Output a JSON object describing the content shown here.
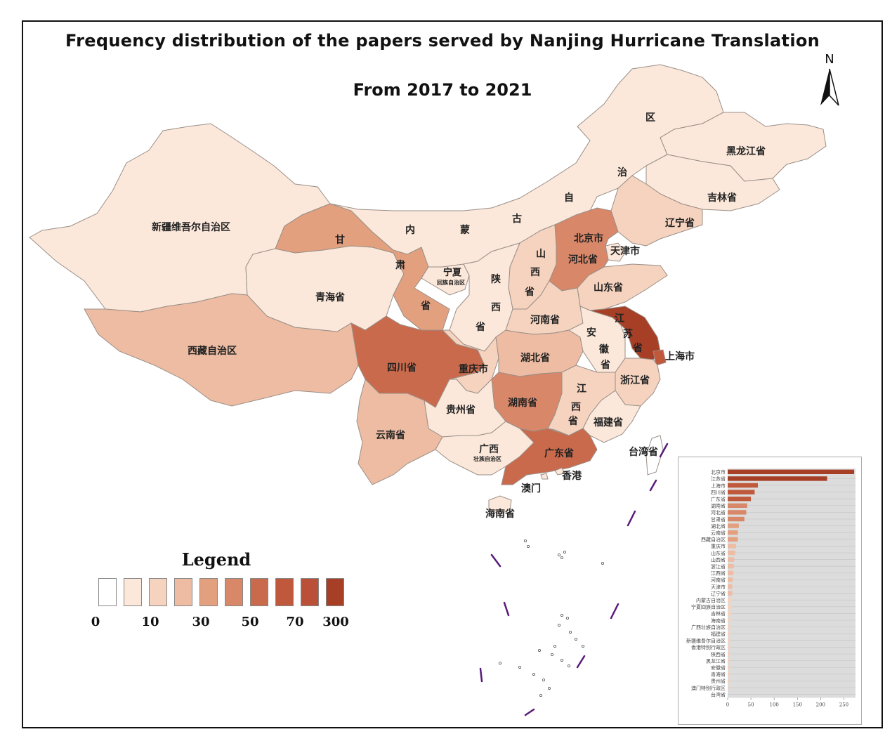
{
  "title": {
    "line1": "Frequency distribution of the papers served by Nanjing Hurricane Translation",
    "line2": "From 2017 to 2021"
  },
  "north_arrow": {
    "label": "N"
  },
  "colors": {
    "ramp": [
      "#ffffff",
      "#fbe8da",
      "#f5d3bf",
      "#eebca2",
      "#e2a07f",
      "#d88769",
      "#c96a4d",
      "#c0583b",
      "#bb5038",
      "#a63f26"
    ],
    "province_stroke": "#9a8f88",
    "inset_bar_bg": "#dcdcdc",
    "dash_line": "#5a1a7a"
  },
  "legend": {
    "title": "Legend",
    "ticks": [
      "0",
      "10",
      "30",
      "50",
      "70",
      "300"
    ]
  },
  "provinces": [
    {
      "name": "新疆维吾尔自治区",
      "class": 1
    },
    {
      "name": "西藏自治区",
      "class": 3
    },
    {
      "name": "青海省",
      "class": 1
    },
    {
      "name": "甘肃省",
      "class": 4
    },
    {
      "name": "内蒙古自治区",
      "class": 1
    },
    {
      "name": "黑龙江省",
      "class": 1
    },
    {
      "name": "吉林省",
      "class": 1
    },
    {
      "name": "辽宁省",
      "class": 2
    },
    {
      "name": "北京市",
      "class": 9
    },
    {
      "name": "天津市",
      "class": 1
    },
    {
      "name": "河北省",
      "class": 5
    },
    {
      "name": "山西省",
      "class": 2
    },
    {
      "name": "宁夏回族自治区",
      "class": 1
    },
    {
      "name": "陕西省",
      "class": 1
    },
    {
      "name": "山东省",
      "class": 2
    },
    {
      "name": "河南省",
      "class": 2
    },
    {
      "name": "四川省",
      "class": 6
    },
    {
      "name": "重庆市",
      "class": 2
    },
    {
      "name": "湖北省",
      "class": 3
    },
    {
      "name": "安徽省",
      "class": 1
    },
    {
      "name": "江苏省",
      "class": 9
    },
    {
      "name": "上海市",
      "class": 7
    },
    {
      "name": "浙江省",
      "class": 2
    },
    {
      "name": "湖南省",
      "class": 5
    },
    {
      "name": "江西省",
      "class": 2
    },
    {
      "name": "福建省",
      "class": 1
    },
    {
      "name": "贵州省",
      "class": 1
    },
    {
      "name": "云南省",
      "class": 3
    },
    {
      "name": "广西壮族自治区",
      "class": 1
    },
    {
      "name": "广东省",
      "class": 6
    },
    {
      "name": "香港",
      "class": 1
    },
    {
      "name": "澳门",
      "class": 1
    },
    {
      "name": "海南省",
      "class": 1
    },
    {
      "name": "台湾省",
      "class": 0
    }
  ],
  "map_labels": [
    "新疆维吾尔自治区",
    "西藏自治区",
    "青海省",
    "甘",
    "肃",
    "省",
    "内",
    "蒙",
    "古",
    "自",
    "治",
    "区",
    "黑龙江省",
    "吉林省",
    "辽宁省",
    "北京市",
    "天津市",
    "河北省",
    "山",
    "西",
    "省",
    "宁夏",
    "回族自治区",
    "陕",
    "西",
    "省",
    "山东省",
    "河南省",
    "四川省",
    "重庆市",
    "湖北省",
    "安",
    "徽",
    "省",
    "江",
    "苏",
    "省",
    "上海市",
    "浙江省",
    "湖南省",
    "江",
    "西",
    "省",
    "福建省",
    "贵州省",
    "云南省",
    "广西",
    "壮族自治区",
    "广东省",
    "香港",
    "澳门",
    "海南省",
    "台湾省"
  ],
  "chart_data": {
    "type": "bar",
    "orientation": "horizontal",
    "categories": [
      "北京市",
      "江苏省",
      "上海市",
      "四川省",
      "广东省",
      "湖南省",
      "河北省",
      "甘肃省",
      "湖北省",
      "云南省",
      "西藏自治区",
      "重庆市",
      "山东省",
      "山西省",
      "浙江省",
      "江西省",
      "河南省",
      "天津市",
      "辽宁省",
      "内蒙古自治区",
      "宁夏回族自治区",
      "吉林省",
      "海南省",
      "广西壮族自治区",
      "福建省",
      "新疆维吾尔自治区",
      "香港特别行政区",
      "陕西省",
      "黑龙江省",
      "安徽省",
      "青海省",
      "贵州省",
      "澳门特别行政区",
      "台湾省"
    ],
    "values": [
      272,
      214,
      65,
      58,
      50,
      42,
      40,
      36,
      24,
      22,
      22,
      18,
      16,
      14,
      13,
      12,
      11,
      10,
      10,
      9,
      8,
      7,
      6,
      6,
      5,
      5,
      5,
      4,
      4,
      4,
      3,
      3,
      2,
      0
    ],
    "xticks": [
      "0",
      "50",
      "100",
      "150",
      "200",
      "250"
    ],
    "xlim": [
      0,
      275
    ]
  }
}
